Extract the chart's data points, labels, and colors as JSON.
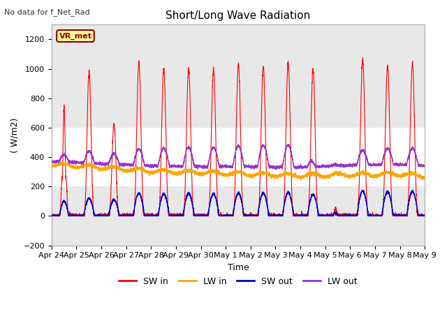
{
  "title": "Short/Long Wave Radiation",
  "top_left_text": "No data for f_Net_Rad",
  "ylabel": "( W/m2)",
  "xlabel": "Time",
  "ylim": [
    -200,
    1300
  ],
  "yticks": [
    -200,
    0,
    200,
    400,
    600,
    800,
    1000,
    1200
  ],
  "bg_color": "#ffffff",
  "plot_bg_color": "#ffffff",
  "gray_band_color": "#e8e8e8",
  "legend_label": "VR_met",
  "legend_bg": "#ffff99",
  "legend_border": "#8B0000",
  "legend_text_color": "#8B0000",
  "line_colors": {
    "SW_in": "#ff0000",
    "LW_in": "#ffa500",
    "SW_out": "#0000cc",
    "LW_out": "#9933cc"
  },
  "x_tick_labels": [
    "Apr 24",
    "Apr 25",
    "Apr 26",
    "Apr 27",
    "Apr 28",
    "Apr 29",
    "Apr 30",
    "May 1",
    "May 2",
    "May 3",
    "May 4",
    "May 5",
    "May 6",
    "May 7",
    "May 8",
    "May 9"
  ],
  "num_days": 15,
  "pts_per_day": 288
}
